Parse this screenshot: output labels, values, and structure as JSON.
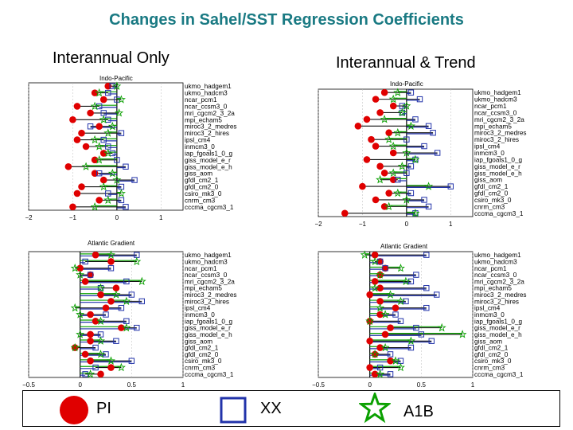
{
  "title": "Changes in Sahel/SST Regression Coefficients",
  "colors": {
    "title": "#1a7a83",
    "pi": "#e00000",
    "xx": "#2233aa",
    "a1b": "#0aa000",
    "stem": "#111111",
    "grid": "#bbbbbb"
  },
  "columns": {
    "left": "Interannual Only",
    "right": "Interannual & Trend"
  },
  "panel_titles": {
    "indo": "Indo-Pacific",
    "atlantic": "Atlantic Gradient"
  },
  "models": [
    "ukmo_hadgem1",
    "ukmo_hadcm3",
    "ncar_pcm1",
    "ncar_ccsm3_0",
    "mri_cgcm2_3_2a",
    "mpi_echam5",
    "miroc3_2_medres",
    "miroc3_2_hires",
    "ipsl_cm4",
    "inmcm3_0",
    "iap_fgoals1_0_g",
    "giss_model_e_r",
    "giss_model_e_h",
    "giss_aom",
    "gfdl_cm2_1",
    "gfdl_cm2_0",
    "csiro_mk3_0",
    "cnrm_cm3",
    "cccma_cgcm3_1"
  ],
  "legend": {
    "pi": "PI",
    "xx": "XX",
    "a1b": "A1B"
  },
  "chart_data": [
    {
      "type": "scatter",
      "title": "Indo-Pacific",
      "column": "Interannual Only",
      "xlim": [
        -2,
        1.5
      ],
      "xticks": [
        -2,
        -1,
        0,
        1
      ],
      "series": [
        {
          "name": "PI",
          "marker": "circle",
          "values": [
            -0.2,
            -0.5,
            -0.3,
            -0.9,
            -0.6,
            -1.0,
            -0.4,
            -0.8,
            -0.9,
            -0.7,
            -0.3,
            -0.5,
            -1.1,
            -0.5,
            -0.3,
            -0.8,
            -0.9,
            -0.4,
            -1.0
          ]
        },
        {
          "name": "XX",
          "marker": "square",
          "values": [
            -0.1,
            -0.2,
            0.0,
            -0.4,
            -0.3,
            -0.2,
            -0.6,
            0.1,
            -0.3,
            -0.2,
            -0.1,
            0.0,
            0.2,
            -0.4,
            0.4,
            0.1,
            -0.2,
            0.1,
            0.2
          ]
        },
        {
          "name": "A1B",
          "marker": "star",
          "values": [
            0.0,
            -0.4,
            0.1,
            -0.5,
            0.05,
            -0.3,
            -0.1,
            -0.2,
            -0.5,
            -0.4,
            -0.2,
            -0.4,
            -0.7,
            -0.1,
            0.0,
            -0.3,
            0.1,
            -0.2,
            -0.5
          ]
        }
      ]
    },
    {
      "type": "scatter",
      "title": "Indo-Pacific",
      "column": "Interannual & Trend",
      "xlim": [
        -2,
        1.5
      ],
      "xticks": [
        -2,
        -1,
        0,
        1
      ],
      "series": [
        {
          "name": "PI",
          "marker": "circle",
          "values": [
            -0.5,
            -0.7,
            -0.3,
            -0.6,
            -0.9,
            -1.1,
            -0.4,
            -0.8,
            -0.7,
            -0.3,
            -0.9,
            -0.6,
            -0.5,
            -0.3,
            -1.0,
            -0.4,
            -0.7,
            -0.5,
            -1.4
          ]
        },
        {
          "name": "XX",
          "marker": "square",
          "values": [
            0.1,
            0.3,
            -0.1,
            -0.1,
            0.2,
            0.5,
            0.6,
            0.0,
            0.4,
            0.7,
            0.2,
            0.1,
            0.0,
            -0.2,
            1.0,
            0.1,
            0.4,
            0.5,
            0.2
          ]
        },
        {
          "name": "A1B",
          "marker": "star",
          "values": [
            -0.2,
            -0.3,
            0.0,
            -0.1,
            -0.5,
            0.1,
            -0.2,
            -0.4,
            -0.3,
            0.0,
            0.2,
            -0.1,
            -0.3,
            -0.6,
            0.5,
            -0.2,
            0.0,
            -0.4,
            0.2
          ]
        }
      ]
    },
    {
      "type": "scatter",
      "title": "Atlantic Gradient",
      "column": "Interannual Only",
      "xlim": [
        -0.5,
        1.0
      ],
      "xticks": [
        -0.5,
        0,
        0.5,
        1
      ],
      "series": [
        {
          "name": "PI",
          "marker": "circle",
          "values": [
            0.15,
            0.3,
            0.0,
            0.1,
            0.05,
            0.35,
            0.2,
            0.3,
            0.25,
            0.1,
            0.15,
            0.4,
            0.1,
            0.1,
            -0.05,
            0.05,
            0.1,
            0.3,
            0.2
          ]
        },
        {
          "name": "XX",
          "marker": "square",
          "values": [
            0.55,
            0.05,
            0.3,
            0.1,
            0.45,
            0.2,
            0.5,
            0.6,
            0.4,
            0.25,
            0.45,
            0.55,
            0.2,
            0.35,
            0.15,
            0.25,
            0.5,
            0.15,
            0.05
          ]
        },
        {
          "name": "A1B",
          "marker": "star",
          "values": [
            0.3,
            0.55,
            -0.05,
            0.0,
            0.6,
            0.2,
            0.35,
            0.45,
            -0.05,
            0.0,
            0.2,
            0.45,
            0.0,
            0.2,
            -0.05,
            0.2,
            0.3,
            0.4,
            0.1
          ]
        }
      ]
    },
    {
      "type": "scatter",
      "title": "Atlantic Gradient",
      "column": "Interannual & Trend",
      "xlim": [
        -0.5,
        1.0
      ],
      "xticks": [
        -0.5,
        0,
        0.5,
        1
      ],
      "series": [
        {
          "name": "PI",
          "marker": "circle",
          "values": [
            0.05,
            0.1,
            0.15,
            0.1,
            0.05,
            0.1,
            0.0,
            0.1,
            0.25,
            0.1,
            0.0,
            0.2,
            0.15,
            0.0,
            0.1,
            0.05,
            0.2,
            0.0,
            0.05
          ]
        },
        {
          "name": "XX",
          "marker": "square",
          "values": [
            0.55,
            0.1,
            0.15,
            0.45,
            0.4,
            0.55,
            0.65,
            0.35,
            0.55,
            0.25,
            0.3,
            0.45,
            0.5,
            0.6,
            0.4,
            0.2,
            0.3,
            0.1,
            0.2
          ]
        },
        {
          "name": "A1B",
          "marker": "star",
          "values": [
            -0.05,
            0.05,
            0.3,
            0.1,
            0.35,
            0.05,
            0.2,
            0.3,
            0.1,
            0.15,
            0.0,
            0.7,
            0.9,
            0.4,
            0.15,
            0.05,
            0.25,
            0.3,
            0.1
          ]
        }
      ]
    }
  ]
}
